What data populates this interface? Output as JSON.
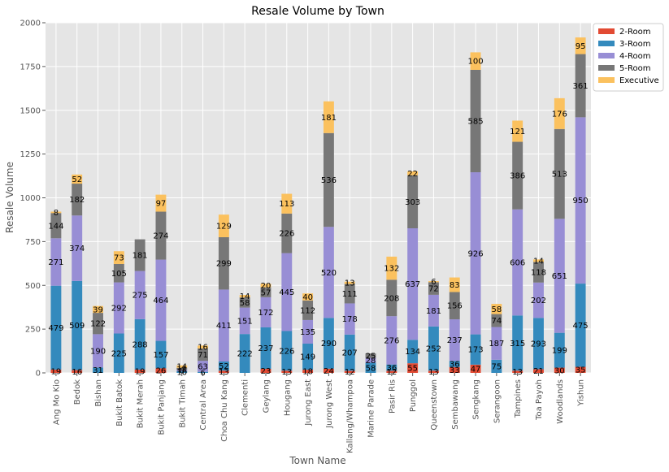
{
  "chart_data": {
    "type": "bar",
    "stacked": true,
    "title": "Resale Volume by Town",
    "xlabel": "Town Name",
    "ylabel": "Resale Volume",
    "ylim": [
      0,
      2000
    ],
    "yticks": [
      0,
      250,
      500,
      750,
      1000,
      1250,
      1500,
      1750,
      2000
    ],
    "grid": true,
    "legend_position": "outside top-right",
    "categories": [
      "Ang Mo Kio",
      "Bedok",
      "Bishan",
      "Bukit Batok",
      "Bukit Merah",
      "Bukit Panjang",
      "Bukit Timah",
      "Central Area",
      "Choa Chu Kang",
      "Clementi",
      "Geylang",
      "Hougang",
      "Jurong East",
      "Jurong West",
      "Kallang/Whampoa",
      "Marine Parade",
      "Pasir Ris",
      "Punggol",
      "Queenstown",
      "Sembawang",
      "Sengkang",
      "Serangoon",
      "Tampines",
      "Toa Payoh",
      "Woodlands",
      "Yishun"
    ],
    "series": [
      {
        "name": "2-Room",
        "color": "#E24A33",
        "values": [
          19,
          16,
          0,
          0,
          19,
          26,
          0,
          0,
          13,
          0,
          23,
          13,
          18,
          24,
          12,
          0,
          12,
          55,
          13,
          33,
          47,
          0,
          13,
          21,
          30,
          35
        ],
        "labels": [
          "19",
          "16",
          "",
          "",
          "19",
          "26",
          "",
          "",
          "13",
          "",
          "23",
          "13",
          "18",
          "24",
          "12",
          "",
          "12",
          "55",
          "13",
          "33",
          "47",
          "",
          "13",
          "21",
          "30",
          "35"
        ]
      },
      {
        "name": "3-Room",
        "color": "#348ABD",
        "values": [
          479,
          509,
          31,
          225,
          288,
          157,
          10,
          6,
          52,
          222,
          237,
          226,
          149,
          290,
          207,
          58,
          36,
          134,
          252,
          36,
          173,
          75,
          315,
          293,
          199,
          475
        ],
        "labels": [
          "479",
          "509",
          "31",
          "225",
          "288",
          "157",
          "10",
          "6",
          "52",
          "222",
          "237",
          "226",
          "149",
          "290",
          "207",
          "58",
          "36",
          "134",
          "252",
          "36",
          "173",
          "75",
          "315",
          "293",
          "199",
          "475"
        ]
      },
      {
        "name": "4-Room",
        "color": "#988ED5",
        "values": [
          271,
          374,
          190,
          292,
          275,
          464,
          8,
          63,
          411,
          151,
          172,
          445,
          135,
          520,
          178,
          28,
          276,
          637,
          181,
          237,
          926,
          187,
          606,
          202,
          651,
          950
        ],
        "labels": [
          "271",
          "374",
          "190",
          "292",
          "275",
          "464",
          "8",
          "63",
          "411",
          "151",
          "172",
          "445",
          "135",
          "520",
          "178",
          "28",
          "276",
          "637",
          "181",
          "237",
          "926",
          "187",
          "606",
          "202",
          "651",
          "950"
        ]
      },
      {
        "name": "5-Room",
        "color": "#777777",
        "values": [
          144,
          182,
          122,
          105,
          181,
          274,
          11,
          71,
          299,
          58,
          57,
          226,
          112,
          536,
          111,
          25,
          208,
          303,
          72,
          156,
          585,
          74,
          386,
          118,
          513,
          361
        ],
        "labels": [
          "144",
          "182",
          "122",
          "105",
          "181",
          "274",
          "11",
          "71",
          "299",
          "58",
          "57",
          "226",
          "112",
          "536",
          "111",
          "25",
          "208",
          "303",
          "72",
          "156",
          "585",
          "74",
          "386",
          "118",
          "513",
          "361"
        ]
      },
      {
        "name": "Executive",
        "color": "#FBC15E",
        "values": [
          8,
          52,
          39,
          73,
          0,
          97,
          14,
          16,
          129,
          14,
          20,
          113,
          40,
          181,
          13,
          0,
          132,
          22,
          6,
          83,
          100,
          58,
          121,
          14,
          176,
          95
        ],
        "labels": [
          "8",
          "52",
          "39",
          "73",
          "",
          "97",
          "14",
          "16",
          "129",
          "14",
          "20",
          "113",
          "40",
          "181",
          "13",
          "",
          "132",
          "22",
          "6",
          "83",
          "100",
          "58",
          "121",
          "14",
          "176",
          "95"
        ]
      }
    ]
  }
}
